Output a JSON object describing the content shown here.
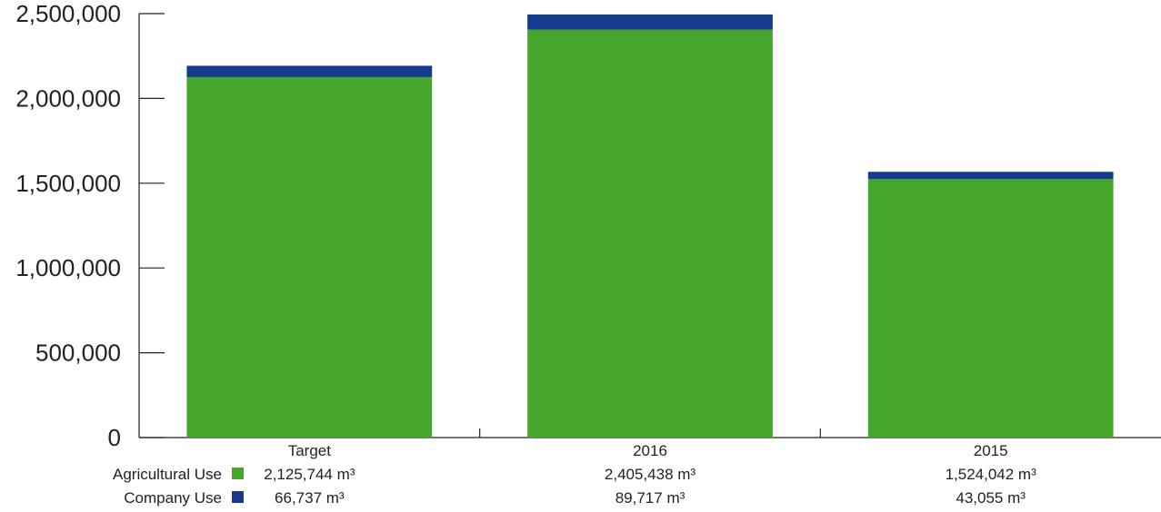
{
  "chart_data": {
    "type": "bar",
    "stacked": true,
    "categories": [
      "Target",
      "2016",
      "2015"
    ],
    "series": [
      {
        "name": "Agricultural Use",
        "color": "#45a62b",
        "values": [
          2125744,
          2405438,
          1524042
        ],
        "labels": [
          "2,125,744 m³",
          "2,405,438 m³",
          "1,524,042 m³"
        ]
      },
      {
        "name": "Company Use",
        "color": "#163b8c",
        "values": [
          66737,
          89717,
          43055
        ],
        "labels": [
          "66,737 m³",
          "89,717 m³",
          "43,055 m³"
        ]
      }
    ],
    "ylim": [
      0,
      2500000
    ],
    "yticks": [
      0,
      500000,
      1000000,
      1500000,
      2000000,
      2500000
    ],
    "ytick_labels": [
      "0",
      "500,000",
      "1,000,000",
      "1,500,000",
      "2,000,000",
      "2,500,000"
    ],
    "title": "",
    "xlabel": "",
    "ylabel": "",
    "grid": false,
    "legend_placement": "bottom-left, inline with value table"
  }
}
